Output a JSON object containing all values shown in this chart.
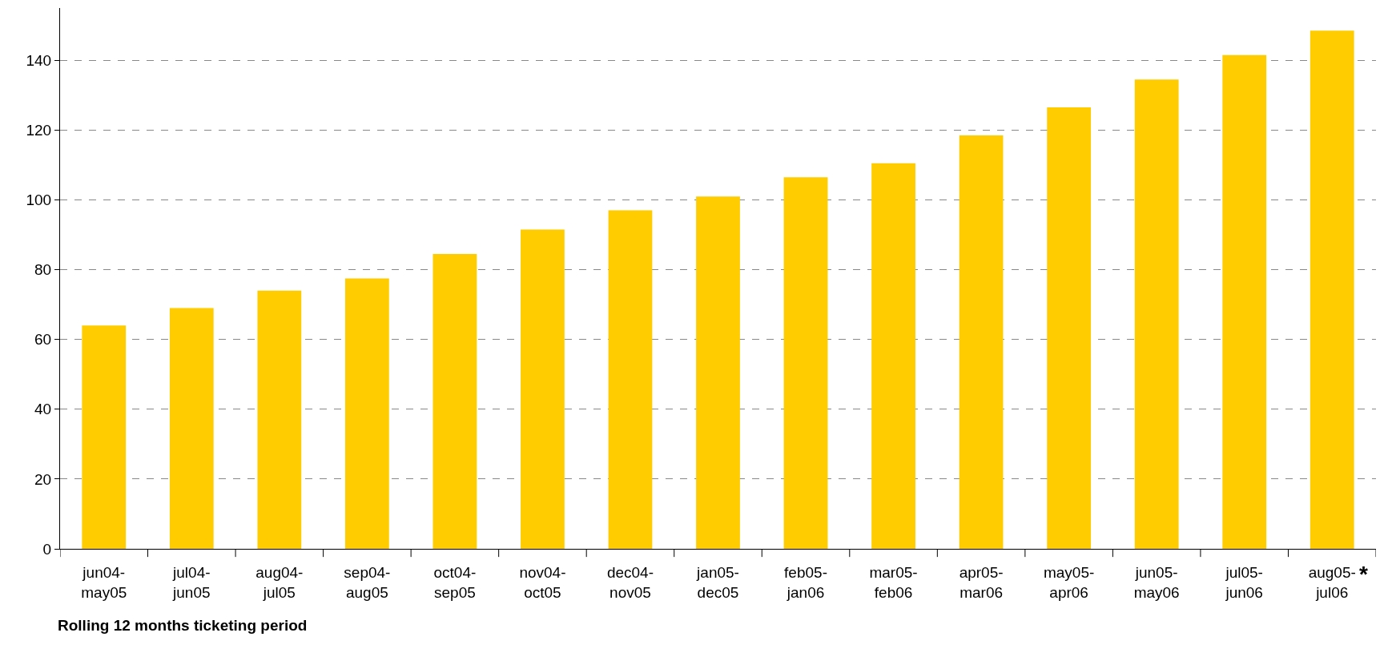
{
  "chart_data": {
    "type": "bar",
    "xlabel": "Rolling 12 months ticketing period",
    "categories": [
      "jun04-may05",
      "jul04-jun05",
      "aug04-jul05",
      "sep04-aug05",
      "oct04-sep05",
      "nov04-oct05",
      "dec04-nov05",
      "jan05-dec05",
      "feb05-jan06",
      "mar05-feb06",
      "apr05-mar06",
      "may05-apr06",
      "jun05-may06",
      "jul05-jun06",
      "aug05-jul06"
    ],
    "values": [
      64,
      69,
      74,
      77.5,
      84.5,
      91.5,
      97,
      101,
      106.5,
      110.5,
      118.5,
      126.5,
      134.5,
      141.5,
      148.5
    ],
    "color": "#ffcc00",
    "ylim": [
      0,
      155
    ],
    "yticks": [
      0,
      20,
      40,
      60,
      80,
      100,
      120,
      140
    ],
    "grid": "y",
    "annotations": [
      "*"
    ]
  }
}
